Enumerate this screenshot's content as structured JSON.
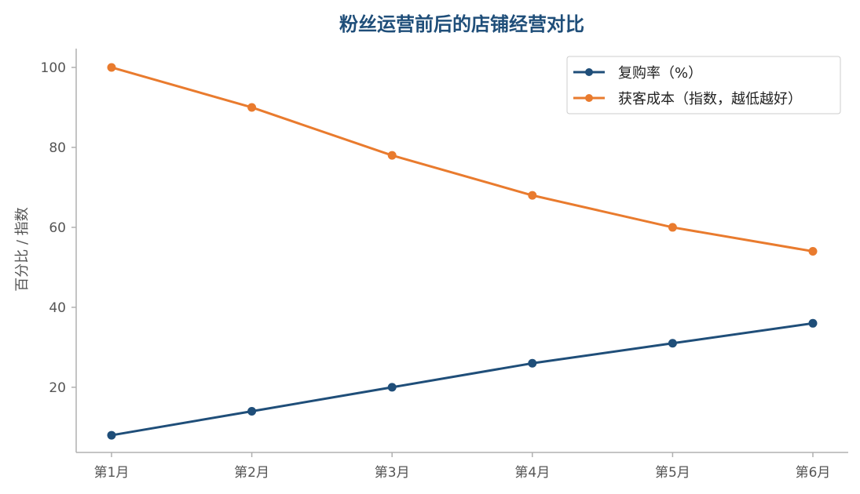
{
  "chart_data": {
    "type": "line",
    "title": "粉丝运营前后的店铺经营对比",
    "xlabel": "",
    "ylabel": "百分比 / 指数",
    "categories": [
      "第1月",
      "第2月",
      "第3月",
      "第4月",
      "第5月",
      "第6月"
    ],
    "yticks": [
      20,
      40,
      60,
      80,
      100
    ],
    "ylim": [
      3.7,
      104.7
    ],
    "grid": false,
    "legend_position": "top-right",
    "series": [
      {
        "name": "复购率（%）",
        "values": [
          8,
          14,
          20,
          26,
          31,
          36
        ],
        "color": "#1f4e79"
      },
      {
        "name": "获客成本（指数，越低越好）",
        "values": [
          100,
          90,
          78,
          68,
          60,
          54
        ],
        "color": "#e97b2e"
      }
    ]
  }
}
